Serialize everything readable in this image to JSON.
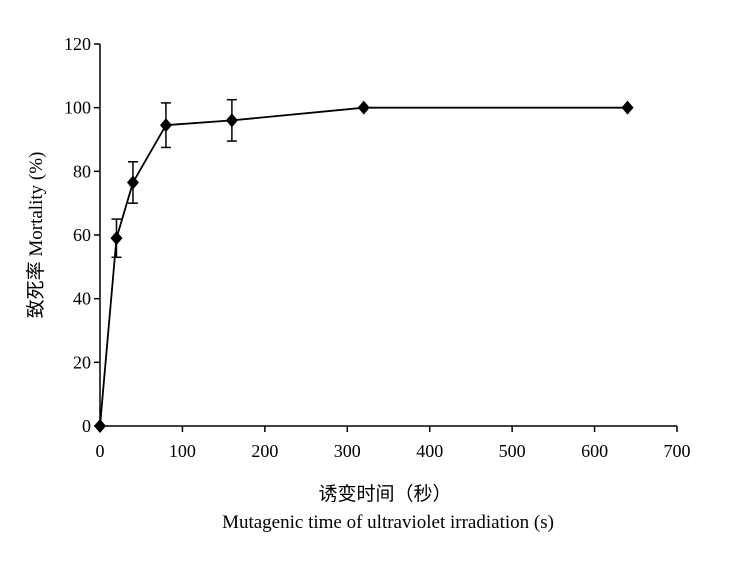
{
  "chart_data": {
    "type": "line",
    "xlabel_cn": "诱变时间（秒）",
    "xlabel_en": "Mutagenic time of ultraviolet irradiation (s)",
    "ylabel": "致死率 Mortality (%)",
    "xlim": [
      0,
      700
    ],
    "ylim": [
      0,
      120
    ],
    "x_ticks": [
      "0",
      "100",
      "200",
      "300",
      "400",
      "500",
      "600",
      "700"
    ],
    "y_ticks": [
      "0",
      "20",
      "40",
      "60",
      "80",
      "100",
      "120"
    ],
    "grid": false,
    "legend": "none",
    "marker": "diamond",
    "line_color": "#000000",
    "series": [
      {
        "x": [
          0,
          20,
          40,
          80,
          160,
          320,
          640
        ],
        "y": [
          0,
          59,
          76.5,
          94.5,
          96,
          100,
          100
        ],
        "error": [
          0,
          6,
          6.5,
          7,
          6.5,
          0,
          0
        ]
      }
    ]
  }
}
